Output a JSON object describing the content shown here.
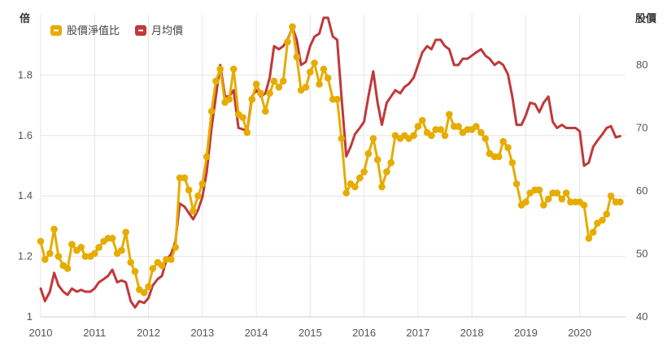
{
  "chart_data": {
    "type": "line",
    "y_axis_label": "倍",
    "y2_axis_label": "股價",
    "legend_position": "top-left",
    "grid": true,
    "ylim": [
      1.0,
      2.0
    ],
    "y2lim": [
      40,
      88
    ],
    "y_ticks": [
      "1",
      "1.2",
      "1.4",
      "1.6",
      "1.8"
    ],
    "y_tick_values": [
      1.0,
      1.2,
      1.4,
      1.6,
      1.8
    ],
    "y2_ticks": [
      "40",
      "50",
      "60",
      "70",
      "80"
    ],
    "y2_tick_values": [
      40,
      50,
      60,
      70,
      80
    ],
    "x_ticks": [
      "2010",
      "2011",
      "2012",
      "2013",
      "2014",
      "2015",
      "2016",
      "2017",
      "2018",
      "2019",
      "2020"
    ],
    "x_tick_values": [
      2010,
      2011,
      2012,
      2013,
      2014,
      2015,
      2016,
      2017,
      2018,
      2019,
      2020
    ],
    "xlim": [
      2010.0,
      2020.85
    ],
    "colors": {
      "pb": "#E6AC00",
      "price": "#C0393B"
    },
    "series": [
      {
        "name": "股價淨值比",
        "axis": "left",
        "markers": true,
        "x": [
          2010.0,
          2010.08,
          2010.17,
          2010.25,
          2010.33,
          2010.42,
          2010.5,
          2010.58,
          2010.67,
          2010.75,
          2010.83,
          2010.92,
          2011.0,
          2011.08,
          2011.17,
          2011.25,
          2011.33,
          2011.42,
          2011.5,
          2011.58,
          2011.67,
          2011.75,
          2011.83,
          2011.92,
          2012.0,
          2012.08,
          2012.17,
          2012.25,
          2012.33,
          2012.42,
          2012.5,
          2012.58,
          2012.67,
          2012.75,
          2012.83,
          2012.92,
          2013.0,
          2013.08,
          2013.17,
          2013.25,
          2013.33,
          2013.42,
          2013.5,
          2013.58,
          2013.67,
          2013.75,
          2013.83,
          2013.92,
          2014.0,
          2014.08,
          2014.17,
          2014.25,
          2014.33,
          2014.42,
          2014.5,
          2014.58,
          2014.67,
          2014.75,
          2014.83,
          2014.92,
          2015.0,
          2015.08,
          2015.17,
          2015.25,
          2015.33,
          2015.42,
          2015.5,
          2015.58,
          2015.67,
          2015.75,
          2015.83,
          2015.92,
          2016.0,
          2016.08,
          2016.17,
          2016.25,
          2016.33,
          2016.42,
          2016.5,
          2016.58,
          2016.67,
          2016.75,
          2016.83,
          2016.92,
          2017.0,
          2017.08,
          2017.17,
          2017.25,
          2017.33,
          2017.42,
          2017.5,
          2017.58,
          2017.67,
          2017.75,
          2017.83,
          2017.92,
          2018.0,
          2018.08,
          2018.17,
          2018.25,
          2018.33,
          2018.42,
          2018.5,
          2018.58,
          2018.67,
          2018.75,
          2018.83,
          2018.92,
          2019.0,
          2019.08,
          2019.17,
          2019.25,
          2019.33,
          2019.42,
          2019.5,
          2019.58,
          2019.67,
          2019.75,
          2019.83,
          2019.92,
          2020.0,
          2020.08,
          2020.17,
          2020.25,
          2020.33,
          2020.42,
          2020.5,
          2020.58,
          2020.67,
          2020.75
        ],
        "values": [
          1.25,
          1.19,
          1.21,
          1.29,
          1.2,
          1.17,
          1.16,
          1.24,
          1.22,
          1.23,
          1.2,
          1.2,
          1.21,
          1.23,
          1.25,
          1.26,
          1.26,
          1.21,
          1.22,
          1.28,
          1.18,
          1.15,
          1.09,
          1.08,
          1.1,
          1.16,
          1.18,
          1.17,
          1.19,
          1.19,
          1.23,
          1.46,
          1.46,
          1.42,
          1.35,
          1.4,
          1.44,
          1.53,
          1.68,
          1.78,
          1.82,
          1.71,
          1.72,
          1.82,
          1.67,
          1.66,
          1.61,
          1.72,
          1.77,
          1.74,
          1.68,
          1.74,
          1.78,
          1.76,
          1.78,
          1.91,
          1.96,
          1.86,
          1.75,
          1.76,
          1.81,
          1.84,
          1.77,
          1.82,
          1.79,
          1.72,
          1.72,
          1.59,
          1.41,
          1.44,
          1.43,
          1.46,
          1.48,
          1.54,
          1.59,
          1.52,
          1.43,
          1.48,
          1.51,
          1.6,
          1.59,
          1.6,
          1.59,
          1.6,
          1.63,
          1.65,
          1.61,
          1.6,
          1.62,
          1.62,
          1.6,
          1.67,
          1.63,
          1.63,
          1.61,
          1.62,
          1.62,
          1.63,
          1.61,
          1.59,
          1.54,
          1.53,
          1.53,
          1.58,
          1.56,
          1.51,
          1.44,
          1.37,
          1.38,
          1.41,
          1.42,
          1.42,
          1.37,
          1.39,
          1.41,
          1.41,
          1.39,
          1.41,
          1.38,
          1.38,
          1.38,
          1.37,
          1.26,
          1.28,
          1.31,
          1.32,
          1.34,
          1.4,
          1.38,
          1.38
        ]
      },
      {
        "name": "月均價",
        "axis": "right",
        "markers": false,
        "x": [
          2010.0,
          2010.08,
          2010.17,
          2010.25,
          2010.33,
          2010.42,
          2010.5,
          2010.58,
          2010.67,
          2010.75,
          2010.83,
          2010.92,
          2011.0,
          2011.08,
          2011.17,
          2011.25,
          2011.33,
          2011.42,
          2011.5,
          2011.58,
          2011.67,
          2011.75,
          2011.83,
          2011.92,
          2012.0,
          2012.08,
          2012.17,
          2012.25,
          2012.33,
          2012.42,
          2012.5,
          2012.58,
          2012.67,
          2012.75,
          2012.83,
          2012.92,
          2013.0,
          2013.08,
          2013.17,
          2013.25,
          2013.33,
          2013.42,
          2013.5,
          2013.58,
          2013.67,
          2013.75,
          2013.83,
          2013.92,
          2014.0,
          2014.08,
          2014.17,
          2014.25,
          2014.33,
          2014.42,
          2014.5,
          2014.58,
          2014.67,
          2014.75,
          2014.83,
          2014.92,
          2015.0,
          2015.08,
          2015.17,
          2015.25,
          2015.33,
          2015.42,
          2015.5,
          2015.58,
          2015.67,
          2015.75,
          2015.83,
          2015.92,
          2016.0,
          2016.08,
          2016.17,
          2016.25,
          2016.33,
          2016.42,
          2016.5,
          2016.58,
          2016.67,
          2016.75,
          2016.83,
          2016.92,
          2017.0,
          2017.08,
          2017.17,
          2017.25,
          2017.33,
          2017.42,
          2017.5,
          2017.58,
          2017.67,
          2017.75,
          2017.83,
          2017.92,
          2018.0,
          2018.08,
          2018.17,
          2018.25,
          2018.33,
          2018.42,
          2018.5,
          2018.58,
          2018.67,
          2018.75,
          2018.83,
          2018.92,
          2019.0,
          2019.08,
          2019.17,
          2019.25,
          2019.33,
          2019.42,
          2019.5,
          2019.58,
          2019.67,
          2019.75,
          2019.83,
          2019.92,
          2020.0,
          2020.08,
          2020.17,
          2020.25,
          2020.33,
          2020.42,
          2020.5,
          2020.58,
          2020.67,
          2020.75
        ],
        "values": [
          44.5,
          42.5,
          44.0,
          47.0,
          45.0,
          44.0,
          43.5,
          44.5,
          44.0,
          44.3,
          44.0,
          44.0,
          44.5,
          45.5,
          46.0,
          46.5,
          47.5,
          45.5,
          45.8,
          45.5,
          42.5,
          41.5,
          42.5,
          42.2,
          43.0,
          45.0,
          46.0,
          46.5,
          49.0,
          50.0,
          52.0,
          58.0,
          57.5,
          56.5,
          55.5,
          57.0,
          59.0,
          63.0,
          70.0,
          75.0,
          80.0,
          75.0,
          75.0,
          76.0,
          70.0,
          69.8,
          69.5,
          75.0,
          76.0,
          75.0,
          75.5,
          78.0,
          83.0,
          82.5,
          83.0,
          84.0,
          86.0,
          84.0,
          80.0,
          80.5,
          83.0,
          84.5,
          85.0,
          87.5,
          87.5,
          84.5,
          84.0,
          75.0,
          65.5,
          67.0,
          69.0,
          70.0,
          71.0,
          75.0,
          79.0,
          74.0,
          70.5,
          74.0,
          75.0,
          76.0,
          75.5,
          76.5,
          77.0,
          78.0,
          80.0,
          82.0,
          83.0,
          82.5,
          84.0,
          84.0,
          83.0,
          82.5,
          80.0,
          80.0,
          81.0,
          81.0,
          81.5,
          82.0,
          82.5,
          81.5,
          81.0,
          80.0,
          80.5,
          80.0,
          78.5,
          75.0,
          70.5,
          70.5,
          72.0,
          74.0,
          73.8,
          72.5,
          74.0,
          75.0,
          71.0,
          70.0,
          70.5,
          70.0,
          70.0,
          70.0,
          69.5,
          64.0,
          64.5,
          67.0,
          68.0,
          69.0,
          70.0,
          70.3,
          68.5,
          68.7
        ]
      }
    ]
  }
}
